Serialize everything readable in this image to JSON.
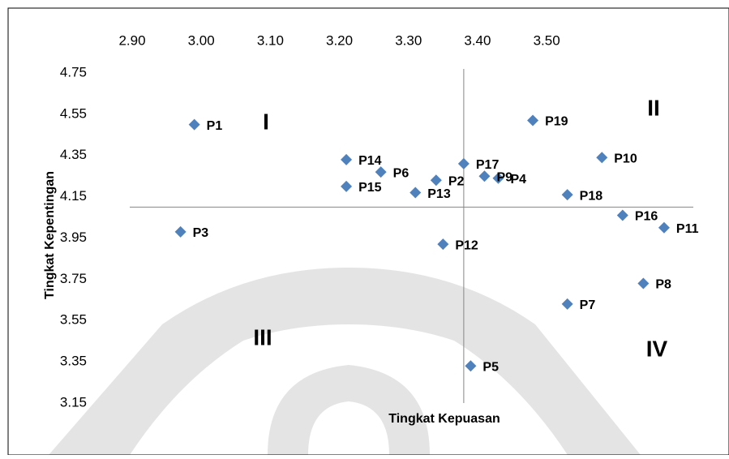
{
  "chart_data": {
    "type": "scatter",
    "xlabel": "Tingkat Kepuasan",
    "ylabel": "Tingkat Kepentingan",
    "x": [
      2.99,
      3.34,
      2.97,
      3.43,
      3.39,
      3.26,
      3.53,
      3.64,
      3.41,
      3.58,
      3.67,
      3.35,
      3.31,
      3.21,
      3.21,
      3.61,
      3.38,
      3.53,
      3.48
    ],
    "values": [
      4.5,
      4.23,
      3.98,
      4.24,
      3.33,
      4.27,
      3.63,
      3.73,
      4.25,
      4.34,
      4.0,
      3.92,
      4.17,
      4.33,
      4.2,
      4.06,
      4.31,
      4.16,
      4.52
    ],
    "point_labels": [
      "P1",
      "P2",
      "P3",
      "P4",
      "P5",
      "P6",
      "P7",
      "P8",
      "P9",
      "P10",
      "P11",
      "P12",
      "P13",
      "P14",
      "P15",
      "P16",
      "P17",
      "P18",
      "P19"
    ],
    "color": "#4f81bd",
    "annotations": [
      "I",
      "II",
      "III",
      "IV"
    ],
    "xlim": [
      2.9,
      3.71
    ],
    "xticks": [
      {
        "value": 2.9,
        "label": "2.90"
      },
      {
        "value": 3.0,
        "label": "3.00"
      },
      {
        "value": 3.1,
        "label": "3.10"
      },
      {
        "value": 3.2,
        "label": "3.20"
      },
      {
        "value": 3.3,
        "label": "3.30"
      },
      {
        "value": 3.4,
        "label": "3.40"
      },
      {
        "value": 3.5,
        "label": "3.50"
      }
    ],
    "ylim": [
      3.15,
      4.75
    ],
    "yticks": [
      4.75,
      4.55,
      4.35,
      4.15,
      3.95,
      3.75,
      3.55,
      3.35,
      3.15
    ],
    "x_cross": 3.38,
    "y_cross": 4.1
  }
}
